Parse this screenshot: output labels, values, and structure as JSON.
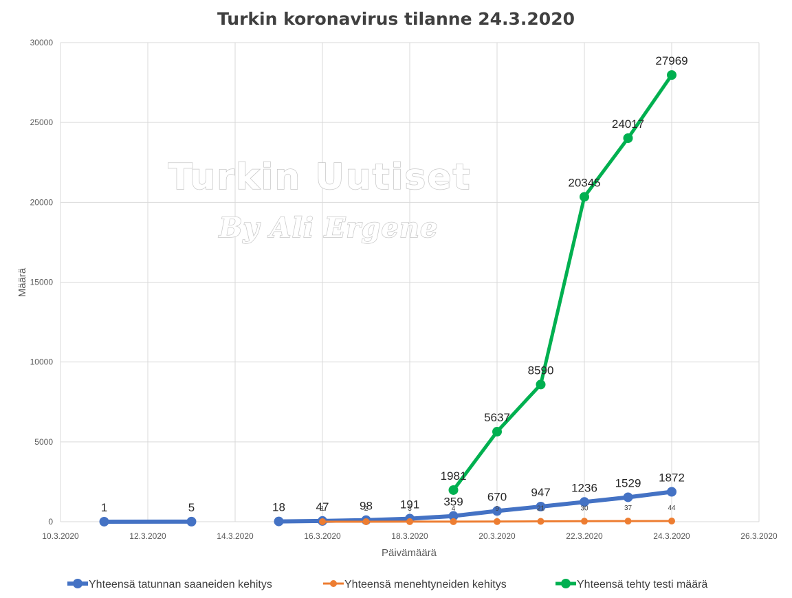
{
  "chart_data": {
    "type": "line",
    "title": "Turkin koronavirus tilanne 24.3.2020",
    "xlabel": "Päivämäärä",
    "ylabel": "Määrä",
    "xlim": [
      "10.3.2020",
      "26.3.2020"
    ],
    "ylim": [
      0,
      30000
    ],
    "x_ticks": [
      "10.3.2020",
      "12.3.2020",
      "14.3.2020",
      "16.3.2020",
      "18.3.2020",
      "20.3.2020",
      "22.3.2020",
      "24.3.2020",
      "26.3.2020"
    ],
    "y_ticks": [
      "0",
      "5000",
      "10000",
      "15000",
      "20000",
      "25000",
      "30000"
    ],
    "grid": true,
    "legend_position": "bottom",
    "series": [
      {
        "name": "Yhteensä tatunnan saaneiden kehitys",
        "color": "#4472c4",
        "label_size": "large",
        "segments": [
          [
            {
              "x": "11.3.2020",
              "y": 1
            },
            {
              "x": "13.3.2020",
              "y": 5
            }
          ],
          [
            {
              "x": "15.3.2020",
              "y": 18
            },
            {
              "x": "16.3.2020",
              "y": 47
            },
            {
              "x": "17.3.2020",
              "y": 98
            },
            {
              "x": "18.3.2020",
              "y": 191
            },
            {
              "x": "19.3.2020",
              "y": 359
            },
            {
              "x": "20.3.2020",
              "y": 670
            },
            {
              "x": "21.3.2020",
              "y": 947
            },
            {
              "x": "22.3.2020",
              "y": 1236
            },
            {
              "x": "23.3.2020",
              "y": 1529
            },
            {
              "x": "24.3.2020",
              "y": 1872
            }
          ]
        ]
      },
      {
        "name": "Yhteensä menehtyneiden kehitys",
        "color": "#ed7d31",
        "label_size": "small",
        "segments": [
          [
            {
              "x": "16.3.2020",
              "y": 1
            },
            {
              "x": "17.3.2020",
              "y": 2
            },
            {
              "x": "18.3.2020",
              "y": 3
            },
            {
              "x": "19.3.2020",
              "y": 4
            },
            {
              "x": "20.3.2020",
              "y": 9
            },
            {
              "x": "21.3.2020",
              "y": 21
            },
            {
              "x": "22.3.2020",
              "y": 30
            },
            {
              "x": "23.3.2020",
              "y": 37
            },
            {
              "x": "24.3.2020",
              "y": 44
            }
          ]
        ]
      },
      {
        "name": "Yhteensä tehty testi määrä",
        "color": "#00b050",
        "label_size": "large",
        "segments": [
          [
            {
              "x": "19.3.2020",
              "y": 1981
            },
            {
              "x": "20.3.2020",
              "y": 5637
            },
            {
              "x": "21.3.2020",
              "y": 8590
            },
            {
              "x": "22.3.2020",
              "y": 20345
            },
            {
              "x": "23.3.2020",
              "y": 24017
            },
            {
              "x": "24.3.2020",
              "y": 27969
            }
          ]
        ]
      }
    ]
  },
  "watermark": {
    "line1": "Turkin Uutiset",
    "line2": "By Ali Ergene"
  }
}
